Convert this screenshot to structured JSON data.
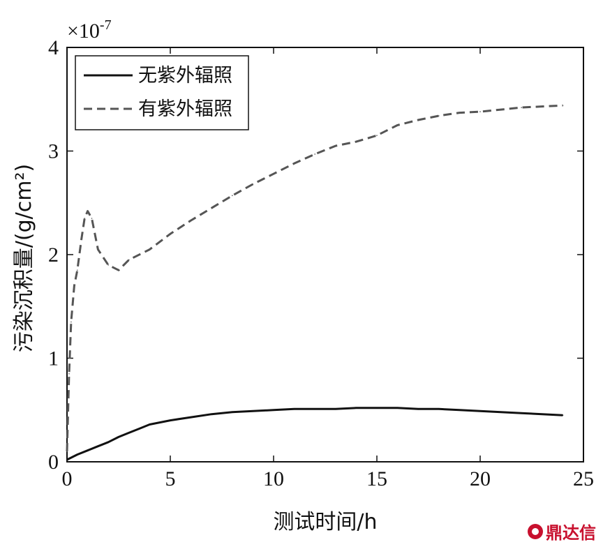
{
  "chart_data": {
    "type": "line",
    "xlabel": "测试时间/h",
    "ylabel": "污染沉积量/(g/cm²)",
    "y_scale_label": "×10",
    "y_scale_exponent": "-7",
    "xlim": [
      0,
      25
    ],
    "ylim": [
      0,
      4
    ],
    "xticks": [
      0,
      5,
      10,
      15,
      20,
      25
    ],
    "yticks": [
      0,
      1,
      2,
      3,
      4
    ],
    "grid": false,
    "legend_position": "top-left",
    "series": [
      {
        "name": "无紫外辐照",
        "style": "solid",
        "color": "#111111",
        "x": [
          0,
          0.5,
          1,
          1.5,
          2,
          2.5,
          3,
          3.5,
          4,
          5,
          6,
          7,
          8,
          9,
          10,
          11,
          12,
          13,
          14,
          15,
          16,
          17,
          18,
          19,
          20,
          21,
          22,
          23,
          24
        ],
        "y": [
          0.02,
          0.07,
          0.11,
          0.15,
          0.19,
          0.24,
          0.28,
          0.32,
          0.36,
          0.4,
          0.43,
          0.46,
          0.48,
          0.49,
          0.5,
          0.51,
          0.51,
          0.51,
          0.52,
          0.52,
          0.52,
          0.51,
          0.51,
          0.5,
          0.49,
          0.48,
          0.47,
          0.46,
          0.45
        ]
      },
      {
        "name": "有紫外辐照",
        "style": "dashed",
        "color": "#555555",
        "x": [
          0,
          0.1,
          0.2,
          0.35,
          0.5,
          0.7,
          0.85,
          1.0,
          1.2,
          1.5,
          2.0,
          2.5,
          3.0,
          4.0,
          5.0,
          6.0,
          7.0,
          8.0,
          9.0,
          10.0,
          11.0,
          12.0,
          13.0,
          14.0,
          15.0,
          16.0,
          17.0,
          18.0,
          19.0,
          20.0,
          21.0,
          22.0,
          23.0,
          24.0
        ],
        "y": [
          0.1,
          0.85,
          1.35,
          1.7,
          1.85,
          2.15,
          2.35,
          2.42,
          2.35,
          2.05,
          1.9,
          1.85,
          1.95,
          2.05,
          2.2,
          2.33,
          2.45,
          2.57,
          2.68,
          2.78,
          2.88,
          2.97,
          3.05,
          3.09,
          3.15,
          3.25,
          3.3,
          3.34,
          3.37,
          3.38,
          3.4,
          3.42,
          3.43,
          3.44
        ]
      }
    ]
  },
  "watermark": {
    "text": "鼎达信",
    "color": "#c8102e"
  }
}
